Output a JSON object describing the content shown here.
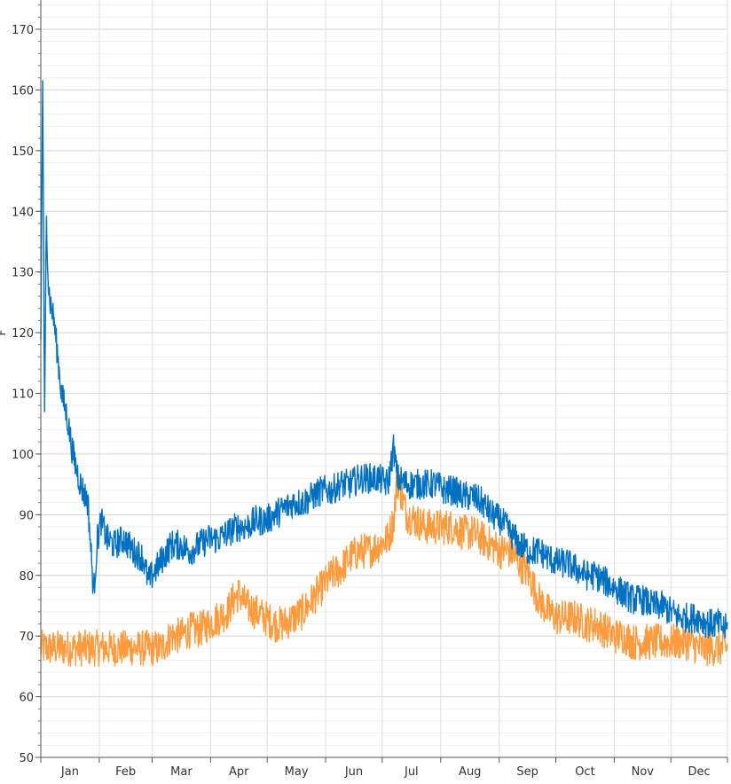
{
  "chart_data": {
    "type": "line",
    "title": "",
    "xlabel": "",
    "ylabel": "F",
    "ylim": [
      50,
      175
    ],
    "y_ticks": [
      50,
      60,
      70,
      80,
      90,
      100,
      110,
      120,
      130,
      140,
      150,
      160,
      170
    ],
    "y_minor_step": 2,
    "xlim": [
      1,
      365
    ],
    "x_month_labels": [
      "Jan",
      "Feb",
      "Mar",
      "Apr",
      "May",
      "Jun",
      "Jul",
      "Aug",
      "Sep",
      "Oct",
      "Nov",
      "Dec"
    ],
    "x_month_boundaries": [
      1,
      32,
      60,
      91,
      121,
      152,
      182,
      213,
      244,
      274,
      305,
      335,
      365
    ],
    "grid": true,
    "legend": "none",
    "series": [
      {
        "color": "#0070C0",
        "x": [
          1,
          2,
          3,
          4,
          5,
          6,
          8,
          10,
          12,
          15,
          18,
          22,
          26,
          29,
          31,
          33,
          36,
          40,
          45,
          50,
          55,
          58,
          62,
          66,
          70,
          75,
          80,
          85,
          90,
          95,
          100,
          105,
          110,
          115,
          120,
          125,
          130,
          135,
          140,
          145,
          150,
          155,
          160,
          165,
          170,
          175,
          180,
          185,
          188,
          190,
          195,
          200,
          205,
          210,
          215,
          220,
          225,
          230,
          235,
          240,
          245,
          250,
          255,
          260,
          265,
          270,
          275,
          280,
          285,
          290,
          295,
          300,
          305,
          310,
          315,
          320,
          325,
          330,
          335,
          340,
          345,
          350,
          355,
          360,
          365
        ],
        "y": [
          120,
          162,
          105,
          140,
          128,
          125,
          122,
          116,
          110,
          106,
          100,
          95,
          92,
          77,
          86,
          89,
          86,
          85,
          86,
          84,
          83,
          79,
          81,
          83,
          85,
          85,
          84,
          85,
          86,
          86,
          87,
          88,
          88,
          89,
          89,
          90,
          91,
          92,
          92,
          93,
          94,
          94,
          95,
          95,
          96,
          96,
          96,
          95,
          101,
          96,
          95,
          95,
          95,
          95,
          94,
          94,
          93,
          93,
          92,
          90,
          89,
          87,
          85,
          84,
          84,
          83,
          82,
          82,
          81,
          80,
          80,
          79,
          78,
          77,
          76,
          76,
          75,
          75,
          74,
          73,
          73,
          73,
          72,
          72,
          71
        ],
        "noise": 2.5
      },
      {
        "color": "#FF9A3D",
        "x": [
          1,
          10,
          20,
          30,
          40,
          50,
          60,
          65,
          70,
          75,
          80,
          85,
          90,
          95,
          100,
          103,
          106,
          110,
          115,
          120,
          125,
          130,
          135,
          140,
          145,
          150,
          155,
          160,
          165,
          170,
          175,
          180,
          185,
          188,
          190,
          195,
          200,
          205,
          210,
          215,
          220,
          225,
          230,
          235,
          240,
          245,
          250,
          255,
          260,
          265,
          270,
          275,
          280,
          285,
          290,
          295,
          300,
          305,
          310,
          315,
          320,
          325,
          330,
          335,
          340,
          345,
          350,
          355,
          360,
          365
        ],
        "y": [
          68,
          68,
          68,
          68,
          68,
          68,
          68,
          68,
          70,
          70,
          71,
          71,
          72,
          73,
          74,
          76,
          77,
          75,
          74,
          73,
          72,
          72,
          73,
          74,
          76,
          78,
          80,
          81,
          83,
          84,
          84,
          85,
          86,
          89,
          96,
          90,
          89,
          88,
          88,
          88,
          88,
          87,
          87,
          86,
          85,
          84,
          84,
          82,
          80,
          76,
          74,
          73,
          73,
          73,
          72,
          72,
          71,
          70,
          70,
          69,
          69,
          69,
          69,
          69,
          69,
          69,
          68,
          68,
          68,
          68
        ],
        "noise": 3.0
      }
    ]
  }
}
